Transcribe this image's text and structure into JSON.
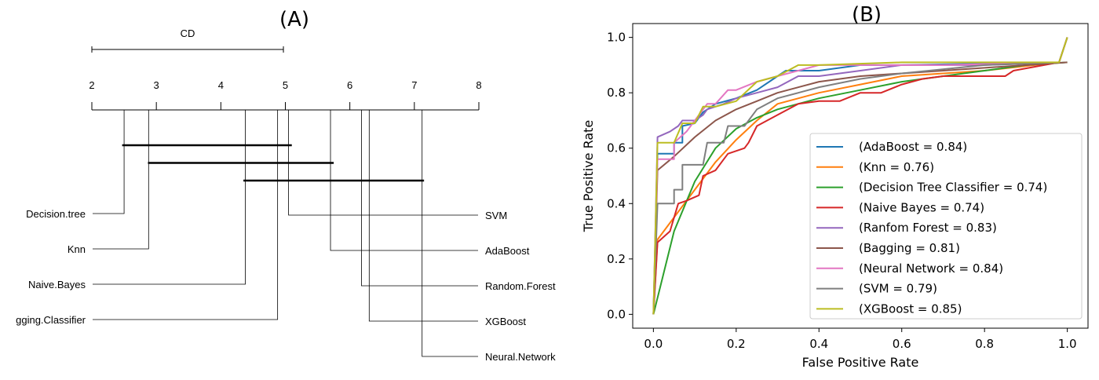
{
  "chart_data": [
    {
      "type": "cd_diagram",
      "title": "(A)",
      "cd_label": "CD",
      "cd_value": 2.97,
      "axis": {
        "min": 2,
        "max": 8,
        "ticks": [
          2,
          3,
          4,
          5,
          6,
          7,
          8
        ]
      },
      "left_methods": [
        {
          "name": "Decision.tree",
          "rank": 2.5
        },
        {
          "name": "Knn",
          "rank": 2.88
        },
        {
          "name": "Naive.Bayes",
          "rank": 4.38
        },
        {
          "name": "gging.Classifier",
          "rank": 4.88
        }
      ],
      "right_methods": [
        {
          "name": "SVM",
          "rank": 5.05
        },
        {
          "name": "AdaBoost",
          "rank": 5.7
        },
        {
          "name": "Random.Forest",
          "rank": 6.18
        },
        {
          "name": "XGBoost",
          "rank": 6.3
        },
        {
          "name": "Neural.Network",
          "rank": 7.12
        }
      ],
      "cliques": [
        [
          2.47,
          5.1
        ],
        [
          2.87,
          5.75
        ],
        [
          4.35,
          7.15
        ]
      ]
    },
    {
      "type": "line",
      "title": "(B)",
      "xlabel": "False Positive Rate",
      "ylabel": "True Positive Rate",
      "xlim": [
        -0.05,
        1.05
      ],
      "ylim": [
        -0.05,
        1.05
      ],
      "xticks": [
        "0.0",
        "0.2",
        "0.4",
        "0.6",
        "0.8",
        "1.0"
      ],
      "yticks": [
        "0.0",
        "0.2",
        "0.4",
        "0.6",
        "0.8",
        "1.0"
      ],
      "legend_position": "lower-right",
      "series": [
        {
          "name": "(AdaBoost = 0.84)",
          "color": "#1f77b4",
          "x": [
            0,
            0.01,
            0.01,
            0.05,
            0.05,
            0.07,
            0.07,
            0.1,
            0.12,
            0.15,
            0.2,
            0.25,
            0.3,
            0.32,
            0.4,
            0.5,
            0.6,
            0.98,
            1.0
          ],
          "y": [
            0,
            0.58,
            0.58,
            0.58,
            0.62,
            0.62,
            0.68,
            0.69,
            0.73,
            0.76,
            0.78,
            0.81,
            0.86,
            0.88,
            0.88,
            0.9,
            0.9,
            0.91,
            1.0
          ]
        },
        {
          "name": "(Knn = 0.76)",
          "color": "#ff7f0e",
          "x": [
            0,
            0.01,
            0.05,
            0.1,
            0.15,
            0.2,
            0.25,
            0.3,
            0.4,
            0.5,
            0.6,
            0.8,
            0.98,
            1.0
          ],
          "y": [
            0,
            0.27,
            0.35,
            0.45,
            0.55,
            0.63,
            0.7,
            0.76,
            0.8,
            0.83,
            0.86,
            0.88,
            0.91,
            1.0
          ]
        },
        {
          "name": "(Decision Tree Classifier = 0.74)",
          "color": "#2ca02c",
          "x": [
            0,
            0.05,
            0.1,
            0.15,
            0.2,
            0.25,
            0.3,
            0.4,
            0.5,
            0.6,
            0.7,
            0.8,
            0.9,
            1.0
          ],
          "y": [
            0,
            0.3,
            0.48,
            0.6,
            0.67,
            0.71,
            0.74,
            0.78,
            0.81,
            0.84,
            0.86,
            0.88,
            0.9,
            0.91
          ]
        },
        {
          "name": "(Naive Bayes = 0.74)",
          "color": "#d62728",
          "x": [
            0,
            0.01,
            0.01,
            0.04,
            0.06,
            0.08,
            0.11,
            0.12,
            0.15,
            0.17,
            0.18,
            0.22,
            0.23,
            0.25,
            0.3,
            0.35,
            0.4,
            0.45,
            0.5,
            0.55,
            0.6,
            0.65,
            0.7,
            0.8,
            0.85,
            0.87,
            0.98,
            1.0
          ],
          "y": [
            0,
            0.26,
            0.26,
            0.3,
            0.4,
            0.41,
            0.43,
            0.5,
            0.52,
            0.56,
            0.58,
            0.6,
            0.62,
            0.68,
            0.72,
            0.76,
            0.77,
            0.77,
            0.8,
            0.8,
            0.83,
            0.85,
            0.86,
            0.86,
            0.86,
            0.88,
            0.91,
            1.0
          ]
        },
        {
          "name": "(Ranfom Forest = 0.83)",
          "color": "#9467bd",
          "x": [
            0,
            0.01,
            0.01,
            0.04,
            0.06,
            0.07,
            0.1,
            0.12,
            0.13,
            0.17,
            0.2,
            0.25,
            0.3,
            0.35,
            0.4,
            0.5,
            0.6,
            0.8,
            0.98,
            1.0
          ],
          "y": [
            0,
            0.64,
            0.64,
            0.66,
            0.68,
            0.7,
            0.7,
            0.72,
            0.74,
            0.76,
            0.78,
            0.8,
            0.82,
            0.86,
            0.86,
            0.88,
            0.9,
            0.9,
            0.91,
            1.0
          ]
        },
        {
          "name": "(Bagging = 0.81)",
          "color": "#8c564b",
          "x": [
            0,
            0.01,
            0.05,
            0.1,
            0.15,
            0.2,
            0.25,
            0.3,
            0.4,
            0.5,
            0.6,
            0.7,
            0.8,
            0.9,
            1.0
          ],
          "y": [
            0,
            0.52,
            0.57,
            0.64,
            0.7,
            0.74,
            0.77,
            0.8,
            0.84,
            0.86,
            0.87,
            0.88,
            0.89,
            0.9,
            0.91
          ]
        },
        {
          "name": "(Neural Network = 0.84)",
          "color": "#e377c2",
          "x": [
            0,
            0.01,
            0.01,
            0.05,
            0.05,
            0.08,
            0.1,
            0.13,
            0.15,
            0.18,
            0.2,
            0.25,
            0.3,
            0.35,
            0.4,
            0.5,
            0.7,
            0.98,
            1.0
          ],
          "y": [
            0,
            0.56,
            0.56,
            0.56,
            0.62,
            0.66,
            0.7,
            0.76,
            0.76,
            0.81,
            0.81,
            0.84,
            0.86,
            0.88,
            0.9,
            0.9,
            0.9,
            0.91,
            1.0
          ]
        },
        {
          "name": "(SVM = 0.79)",
          "color": "#7f7f7f",
          "x": [
            0,
            0.01,
            0.01,
            0.05,
            0.05,
            0.07,
            0.07,
            0.12,
            0.13,
            0.17,
            0.18,
            0.22,
            0.25,
            0.3,
            0.35,
            0.4,
            0.5,
            0.6,
            0.8,
            0.98,
            1.0
          ],
          "y": [
            0,
            0.4,
            0.4,
            0.4,
            0.45,
            0.45,
            0.54,
            0.54,
            0.62,
            0.62,
            0.68,
            0.68,
            0.74,
            0.78,
            0.8,
            0.82,
            0.85,
            0.87,
            0.9,
            0.91,
            1.0
          ]
        },
        {
          "name": "(XGBoost = 0.85)",
          "color": "#bcbd22",
          "x": [
            0,
            0.01,
            0.01,
            0.05,
            0.07,
            0.1,
            0.12,
            0.15,
            0.2,
            0.25,
            0.3,
            0.35,
            0.4,
            0.6,
            0.98,
            1.0
          ],
          "y": [
            0,
            0.62,
            0.62,
            0.62,
            0.69,
            0.69,
            0.75,
            0.75,
            0.77,
            0.84,
            0.86,
            0.9,
            0.9,
            0.91,
            0.91,
            1.0
          ]
        }
      ]
    }
  ]
}
